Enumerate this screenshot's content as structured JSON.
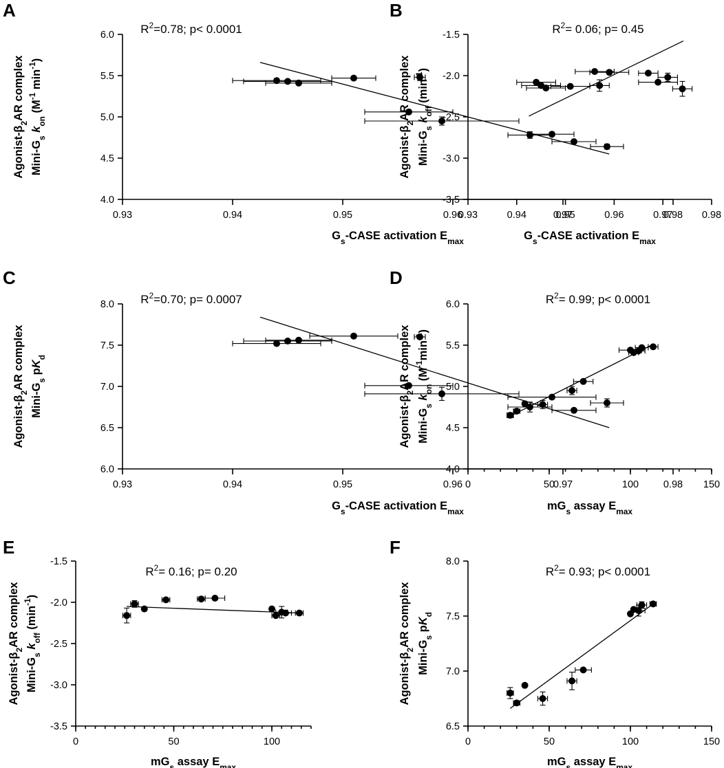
{
  "chart_data": [
    {
      "panel": "A",
      "type": "scatter",
      "stat_text": [
        "R",
        "2",
        "=0.78; p< 0.0001"
      ],
      "xlabel": [
        [
          "G",
          ""
        ],
        [
          "s",
          "sub"
        ],
        [
          "-CASE activation E",
          ""
        ],
        [
          "max",
          "sub"
        ]
      ],
      "ylabel_line1": [
        [
          "Agonist-β",
          ""
        ],
        [
          "2",
          "sub"
        ],
        [
          "AR complex",
          ""
        ]
      ],
      "ylabel_line2": [
        [
          "Mini-G",
          ""
        ],
        [
          "s",
          "sub"
        ],
        [
          " ",
          ""
        ],
        [
          "k",
          "it"
        ],
        [
          "on",
          "sub"
        ],
        [
          " (M",
          ""
        ],
        [
          "-1",
          "sup"
        ],
        [
          " min",
          ""
        ],
        [
          "-1",
          "sup"
        ],
        [
          ")",
          ""
        ]
      ],
      "xlim": [
        0.93,
        0.98
      ],
      "xticks": [
        0.93,
        0.94,
        0.95,
        0.96,
        0.97,
        0.98
      ],
      "ylim": [
        4.0,
        6.0
      ],
      "yticks": [
        4.0,
        4.5,
        5.0,
        5.5,
        6.0
      ],
      "decimals_x": 2,
      "decimals_y": 1,
      "minor_x": 0,
      "points": [
        {
          "x": 0.944,
          "y": 5.44,
          "xerr": 0.004,
          "yerr": 0
        },
        {
          "x": 0.945,
          "y": 5.43,
          "xerr": 0.004,
          "yerr": 0
        },
        {
          "x": 0.946,
          "y": 5.41,
          "xerr": 0.003,
          "yerr": 0
        },
        {
          "x": 0.951,
          "y": 5.47,
          "xerr": 0.002,
          "yerr": 0
        },
        {
          "x": 0.957,
          "y": 5.48,
          "xerr": 0.0005,
          "yerr": 0.04
        },
        {
          "x": 0.956,
          "y": 5.06,
          "xerr": 0.004,
          "yerr": 0
        },
        {
          "x": 0.959,
          "y": 4.95,
          "xerr": 0.007,
          "yerr": 0.05
        },
        {
          "x": 0.967,
          "y": 4.78,
          "xerr": 0.002,
          "yerr": 0.04
        },
        {
          "x": 0.969,
          "y": 4.79,
          "xerr": 0.002,
          "yerr": 0
        },
        {
          "x": 0.971,
          "y": 4.7,
          "xerr": 0.002,
          "yerr": 0
        },
        {
          "x": 0.974,
          "y": 4.64,
          "xerr": 0.0015,
          "yerr": 0.03
        }
      ],
      "fit": {
        "x1": 0.9425,
        "y1": 5.66,
        "x2": 0.9742,
        "y2": 4.55
      }
    },
    {
      "panel": "B",
      "type": "scatter",
      "stat_text": [
        "R",
        "2",
        "= 0.06; p= 0.45"
      ],
      "xlabel": [
        [
          "G",
          ""
        ],
        [
          "s",
          "sub"
        ],
        [
          "-CASE activation E",
          ""
        ],
        [
          "max",
          "sub"
        ]
      ],
      "ylabel_line1": [
        [
          "Agonist-β",
          ""
        ],
        [
          "2",
          "sub"
        ],
        [
          "AR complex",
          ""
        ]
      ],
      "ylabel_line2": [
        [
          "Mini-G",
          ""
        ],
        [
          "s",
          "sub"
        ],
        [
          " ",
          ""
        ],
        [
          "k",
          "it"
        ],
        [
          "off",
          "sub"
        ],
        [
          " (min",
          ""
        ],
        [
          "-1",
          "sup"
        ],
        [
          ")",
          ""
        ]
      ],
      "xlim": [
        0.93,
        0.98
      ],
      "xticks": [
        0.93,
        0.94,
        0.95,
        0.96,
        0.97,
        0.98
      ],
      "ylim": [
        -3.5,
        -1.5
      ],
      "yticks": [
        -3.5,
        -3.0,
        -2.5,
        -2.0,
        -1.5
      ],
      "decimals_x": 2,
      "decimals_y": 1,
      "minor_x": 0,
      "points": [
        {
          "x": 0.944,
          "y": -2.08,
          "xerr": 0.004,
          "yerr": 0
        },
        {
          "x": 0.945,
          "y": -2.12,
          "xerr": 0.004,
          "yerr": 0
        },
        {
          "x": 0.946,
          "y": -2.15,
          "xerr": 0.004,
          "yerr": 0
        },
        {
          "x": 0.951,
          "y": -2.13,
          "xerr": 0.004,
          "yerr": 0
        },
        {
          "x": 0.956,
          "y": -1.95,
          "xerr": 0.004,
          "yerr": 0
        },
        {
          "x": 0.957,
          "y": -2.12,
          "xerr": 0.002,
          "yerr": 0.07
        },
        {
          "x": 0.959,
          "y": -1.96,
          "xerr": 0.004,
          "yerr": 0
        },
        {
          "x": 0.967,
          "y": -1.97,
          "xerr": 0.002,
          "yerr": 0
        },
        {
          "x": 0.969,
          "y": -2.08,
          "xerr": 0.004,
          "yerr": 0
        },
        {
          "x": 0.971,
          "y": -2.02,
          "xerr": 0.002,
          "yerr": 0.05
        },
        {
          "x": 0.974,
          "y": -2.16,
          "xerr": 0.002,
          "yerr": 0.09
        }
      ],
      "fit": {
        "x1": 0.9425,
        "y1": -2.49,
        "x2": 0.9742,
        "y2": -1.58
      }
    },
    {
      "panel": "C",
      "type": "scatter",
      "stat_text": [
        "R",
        "2",
        "=0.70; p= 0.0007"
      ],
      "xlabel": [
        [
          "G",
          ""
        ],
        [
          "s",
          "sub"
        ],
        [
          "-CASE activation E",
          ""
        ],
        [
          "max",
          "sub"
        ]
      ],
      "ylabel_line1": [
        [
          "Agonist-β",
          ""
        ],
        [
          "2",
          "sub"
        ],
        [
          "AR complex",
          ""
        ]
      ],
      "ylabel_line2": [
        [
          "Mini-G",
          ""
        ],
        [
          "s",
          "sub"
        ],
        [
          " p",
          ""
        ],
        [
          "K",
          "it"
        ],
        [
          "d",
          "sub"
        ]
      ],
      "xlim": [
        0.93,
        0.98
      ],
      "xticks": [
        0.93,
        0.94,
        0.95,
        0.96,
        0.97,
        0.98
      ],
      "ylim": [
        6.0,
        8.0
      ],
      "yticks": [
        6.0,
        6.5,
        7.0,
        7.5,
        8.0
      ],
      "decimals_x": 2,
      "decimals_y": 1,
      "minor_x": 0,
      "points": [
        {
          "x": 0.944,
          "y": 7.52,
          "xerr": 0.004,
          "yerr": 0
        },
        {
          "x": 0.945,
          "y": 7.55,
          "xerr": 0.004,
          "yerr": 0
        },
        {
          "x": 0.946,
          "y": 7.56,
          "xerr": 0.003,
          "yerr": 0
        },
        {
          "x": 0.951,
          "y": 7.61,
          "xerr": 0.004,
          "yerr": 0
        },
        {
          "x": 0.957,
          "y": 7.6,
          "xerr": 0.0005,
          "yerr": 0
        },
        {
          "x": 0.956,
          "y": 7.01,
          "xerr": 0.004,
          "yerr": 0
        },
        {
          "x": 0.959,
          "y": 6.91,
          "xerr": 0.007,
          "yerr": 0.08
        },
        {
          "x": 0.967,
          "y": 6.75,
          "xerr": 0.002,
          "yerr": 0.06
        },
        {
          "x": 0.969,
          "y": 6.87,
          "xerr": 0.004,
          "yerr": 0
        },
        {
          "x": 0.971,
          "y": 6.71,
          "xerr": 0.002,
          "yerr": 0
        },
        {
          "x": 0.974,
          "y": 6.8,
          "xerr": 0.0015,
          "yerr": 0.05
        }
      ],
      "fit": {
        "x1": 0.9425,
        "y1": 7.84,
        "x2": 0.9742,
        "y2": 6.5
      }
    },
    {
      "panel": "D",
      "type": "scatter",
      "stat_text": [
        "R",
        "2",
        "= 0.99; p< 0.0001"
      ],
      "xlabel": [
        [
          "mG",
          ""
        ],
        [
          "s",
          "sub"
        ],
        [
          " assay E",
          ""
        ],
        [
          "max",
          "sub"
        ]
      ],
      "ylabel_line1": [
        [
          "Agonist-β",
          ""
        ],
        [
          "2",
          "sub"
        ],
        [
          "AR complex",
          ""
        ]
      ],
      "ylabel_line2": [
        [
          "Mini-G",
          ""
        ],
        [
          "s",
          "sub"
        ],
        [
          " ",
          ""
        ],
        [
          "k",
          "it"
        ],
        [
          "on",
          "sub"
        ],
        [
          " (M",
          ""
        ],
        [
          "-1",
          "sup"
        ],
        [
          "min",
          ""
        ],
        [
          "-1",
          "sup"
        ],
        [
          ")",
          ""
        ]
      ],
      "xlim": [
        0,
        150
      ],
      "xticks": [
        0,
        50,
        100,
        150
      ],
      "ylim": [
        4.0,
        6.0
      ],
      "yticks": [
        4.0,
        4.5,
        5.0,
        5.5,
        6.0
      ],
      "decimals_x": 0,
      "decimals_y": 1,
      "minor_x": 10,
      "points": [
        {
          "x": 26,
          "y": 4.65,
          "xerr": 2,
          "yerr": 0.03
        },
        {
          "x": 30,
          "y": 4.7,
          "xerr": 2,
          "yerr": 0
        },
        {
          "x": 35,
          "y": 4.79,
          "xerr": 0,
          "yerr": 0
        },
        {
          "x": 46,
          "y": 4.78,
          "xerr": 3,
          "yerr": 0.05
        },
        {
          "x": 64,
          "y": 4.95,
          "xerr": 3,
          "yerr": 0.05
        },
        {
          "x": 71,
          "y": 5.06,
          "xerr": 6,
          "yerr": 0
        },
        {
          "x": 100,
          "y": 5.44,
          "xerr": 7,
          "yerr": 0
        },
        {
          "x": 102,
          "y": 5.41,
          "xerr": 3,
          "yerr": 0
        },
        {
          "x": 105,
          "y": 5.43,
          "xerr": 4,
          "yerr": 0
        },
        {
          "x": 107,
          "y": 5.47,
          "xerr": 4,
          "yerr": 0
        },
        {
          "x": 114,
          "y": 5.48,
          "xerr": 3,
          "yerr": 0
        }
      ],
      "fit": {
        "x1": 25,
        "y1": 4.63,
        "x2": 114,
        "y2": 5.51
      }
    },
    {
      "panel": "E",
      "type": "scatter",
      "stat_text": [
        "R",
        "2",
        "= 0.16; p= 0.20"
      ],
      "xlabel": [
        [
          "mG",
          ""
        ],
        [
          "s",
          "sub"
        ],
        [
          " assay E",
          ""
        ],
        [
          "max",
          "sub"
        ]
      ],
      "ylabel_line1": [
        [
          "Agonist-β",
          ""
        ],
        [
          "2",
          "sub"
        ],
        [
          "AR complex",
          ""
        ]
      ],
      "ylabel_line2": [
        [
          "Mini-G",
          ""
        ],
        [
          "s",
          "sub"
        ],
        [
          " ",
          ""
        ],
        [
          "k",
          "it"
        ],
        [
          "off",
          "sub"
        ],
        [
          " (min",
          ""
        ],
        [
          "-1",
          "sup"
        ],
        [
          ")",
          ""
        ]
      ],
      "xlim": [
        0,
        120
      ],
      "xticks": [
        0,
        50,
        100
      ],
      "ylim": [
        -3.5,
        -1.5
      ],
      "yticks": [
        -3.5,
        -3.0,
        -2.5,
        -2.0,
        -1.5
      ],
      "decimals_x": 0,
      "decimals_y": 1,
      "minor_x": 5,
      "points": [
        {
          "x": 26,
          "y": -2.16,
          "xerr": 2,
          "yerr": 0.09
        },
        {
          "x": 30,
          "y": -2.02,
          "xerr": 2,
          "yerr": 0.04
        },
        {
          "x": 35,
          "y": -2.08,
          "xerr": 0,
          "yerr": 0
        },
        {
          "x": 46,
          "y": -1.97,
          "xerr": 2,
          "yerr": 0
        },
        {
          "x": 64,
          "y": -1.96,
          "xerr": 2,
          "yerr": 0
        },
        {
          "x": 71,
          "y": -1.95,
          "xerr": 5,
          "yerr": 0
        },
        {
          "x": 100,
          "y": -2.08,
          "xerr": 0,
          "yerr": 0
        },
        {
          "x": 102,
          "y": -2.16,
          "xerr": 2,
          "yerr": 0
        },
        {
          "x": 105,
          "y": -2.12,
          "xerr": 3,
          "yerr": 0.07
        },
        {
          "x": 107,
          "y": -2.13,
          "xerr": 3,
          "yerr": 0
        },
        {
          "x": 114,
          "y": -2.13,
          "xerr": 2,
          "yerr": 0
        }
      ],
      "fit": {
        "x1": 26,
        "y1": -2.05,
        "x2": 114,
        "y2": -2.13
      }
    },
    {
      "panel": "F",
      "type": "scatter",
      "stat_text": [
        "R",
        "2",
        "= 0.93; p< 0.0001"
      ],
      "xlabel": [
        [
          "mG",
          ""
        ],
        [
          "s",
          "sub"
        ],
        [
          " assay E",
          ""
        ],
        [
          "max",
          "sub"
        ]
      ],
      "ylabel_line1": [
        [
          "Agonist-β",
          ""
        ],
        [
          "2",
          "sub"
        ],
        [
          "AR complex",
          ""
        ]
      ],
      "ylabel_line2": [
        [
          "Mini-G",
          ""
        ],
        [
          "s",
          "sub"
        ],
        [
          " p",
          ""
        ],
        [
          "K",
          "it"
        ],
        [
          "d",
          "sub"
        ]
      ],
      "xlim": [
        0,
        150
      ],
      "xticks": [
        0,
        50,
        100,
        150
      ],
      "ylim": [
        6.5,
        8.0
      ],
      "yticks": [
        6.5,
        7.0,
        7.5,
        8.0
      ],
      "decimals_x": 0,
      "decimals_y": 1,
      "minor_x": 10,
      "points": [
        {
          "x": 26,
          "y": 6.8,
          "xerr": 2,
          "yerr": 0.05
        },
        {
          "x": 30,
          "y": 6.71,
          "xerr": 2,
          "yerr": 0
        },
        {
          "x": 35,
          "y": 6.87,
          "xerr": 0,
          "yerr": 0
        },
        {
          "x": 46,
          "y": 6.75,
          "xerr": 3,
          "yerr": 0.06
        },
        {
          "x": 64,
          "y": 6.91,
          "xerr": 3,
          "yerr": 0.08
        },
        {
          "x": 71,
          "y": 7.01,
          "xerr": 5,
          "yerr": 0
        },
        {
          "x": 100,
          "y": 7.52,
          "xerr": 0,
          "yerr": 0
        },
        {
          "x": 102,
          "y": 7.56,
          "xerr": 0,
          "yerr": 0
        },
        {
          "x": 105,
          "y": 7.55,
          "xerr": 4,
          "yerr": 0.05
        },
        {
          "x": 107,
          "y": 7.6,
          "xerr": 3,
          "yerr": 0.03
        },
        {
          "x": 114,
          "y": 7.61,
          "xerr": 2,
          "yerr": 0
        }
      ],
      "fit": {
        "x1": 26,
        "y1": 6.66,
        "x2": 114,
        "y2": 7.61
      }
    }
  ]
}
